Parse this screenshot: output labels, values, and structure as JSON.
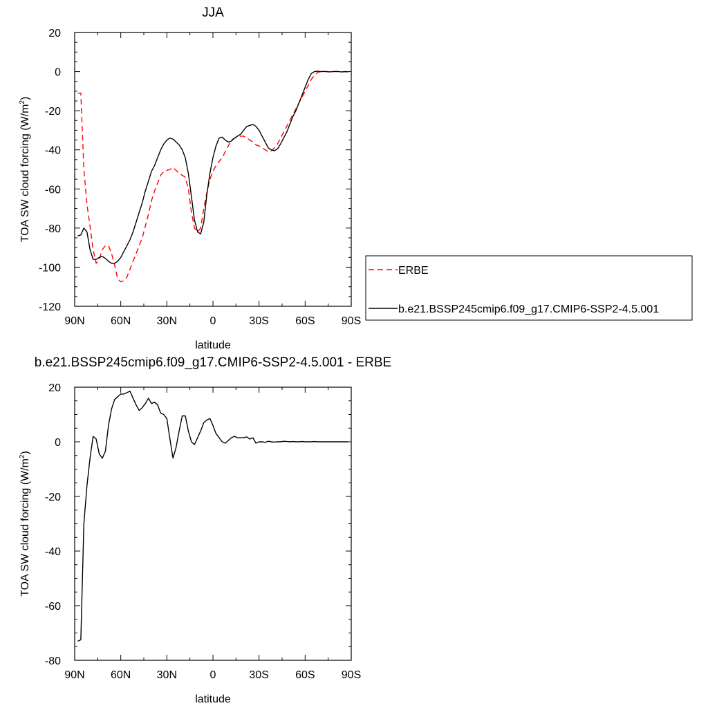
{
  "chart_data": [
    {
      "type": "line",
      "title": "JJA",
      "xlabel": "latitude",
      "ylabel": "TOA SW cloud forcing (W/m",
      "ylabel_sup": "2",
      "ylabel_end": ")",
      "xlim": [
        90,
        -90
      ],
      "ylim": [
        -120,
        20
      ],
      "xticks": [
        {
          "value": 90,
          "label": "90N"
        },
        {
          "value": 60,
          "label": "60N"
        },
        {
          "value": 30,
          "label": "30N"
        },
        {
          "value": 0,
          "label": "0"
        },
        {
          "value": -30,
          "label": "30S"
        },
        {
          "value": -60,
          "label": "60S"
        },
        {
          "value": -90,
          "label": "90S"
        }
      ],
      "yticks": [
        20,
        0,
        -20,
        -40,
        -60,
        -80,
        -100,
        -120
      ],
      "legend_position": "right",
      "series": [
        {
          "name": "ERBE",
          "color": "#ff0000",
          "style": "dashed",
          "x": [
            88,
            86,
            84,
            82,
            80,
            78,
            76,
            74,
            72,
            70,
            68,
            66,
            64,
            62,
            60,
            58,
            56,
            54,
            52,
            50,
            48,
            46,
            44,
            42,
            40,
            38,
            36,
            34,
            32,
            30,
            28,
            26,
            24,
            22,
            20,
            18,
            16,
            14,
            12,
            10,
            8,
            6,
            4,
            2,
            0,
            -2,
            -4,
            -6,
            -8,
            -10,
            -12,
            -14,
            -16,
            -18,
            -20,
            -22,
            -24,
            -26,
            -28,
            -30,
            -32,
            -34,
            -36,
            -38,
            -40,
            -42,
            -44,
            -46,
            -48,
            -50,
            -52,
            -54,
            -56,
            -58,
            -60,
            -62,
            -64,
            -66,
            -68,
            -70,
            -72,
            -74,
            -76,
            -78,
            -80,
            -82,
            -84,
            -86,
            -88
          ],
          "y": [
            -11,
            -11,
            -50,
            -68,
            -79,
            -91,
            -98,
            -96,
            -91,
            -89,
            -89,
            -93,
            -99,
            -106,
            -107.5,
            -107,
            -105,
            -101,
            -97,
            -93,
            -89,
            -85,
            -79,
            -73,
            -66,
            -61,
            -57,
            -53,
            -51,
            -50.5,
            -50,
            -49,
            -50.5,
            -52,
            -53,
            -54,
            -60,
            -72,
            -80,
            -82,
            -80,
            -70,
            -62,
            -55,
            -51,
            -48,
            -46,
            -44,
            -41,
            -38,
            -35,
            -34,
            -33.5,
            -33,
            -33,
            -34,
            -35,
            -36,
            -37.5,
            -38,
            -39,
            -40,
            -41,
            -40.5,
            -39,
            -37,
            -34,
            -31,
            -28,
            -25,
            -22,
            -19,
            -16,
            -13,
            -10,
            -7,
            -4,
            -2,
            -0.5,
            0,
            0.2,
            0,
            -0.2,
            0,
            0.1,
            0,
            -0.1,
            0,
            0
          ]
        },
        {
          "name": "b.e21.BSSP245cmip6.f09_g17.CMIP6-SSP2-4.5.001",
          "color": "#000000",
          "style": "solid",
          "x": [
            88,
            86,
            84,
            82,
            80,
            78,
            76,
            74,
            72,
            70,
            68,
            66,
            64,
            62,
            60,
            58,
            56,
            54,
            52,
            50,
            48,
            46,
            44,
            42,
            40,
            38,
            36,
            34,
            32,
            30,
            28,
            26,
            24,
            22,
            20,
            18,
            16,
            14,
            12,
            10,
            8,
            6,
            4,
            2,
            0,
            -2,
            -4,
            -6,
            -8,
            -10,
            -12,
            -14,
            -16,
            -18,
            -20,
            -22,
            -24,
            -26,
            -28,
            -30,
            -32,
            -34,
            -36,
            -38,
            -40,
            -42,
            -44,
            -46,
            -48,
            -50,
            -52,
            -54,
            -56,
            -58,
            -60,
            -62,
            -64,
            -66,
            -68,
            -70,
            -72,
            -74,
            -76,
            -78,
            -80,
            -82,
            -84,
            -86,
            -88
          ],
          "y": [
            -84,
            -83.5,
            -80,
            -82,
            -91,
            -96,
            -96,
            -95,
            -94.5,
            -95.5,
            -97,
            -98,
            -98,
            -97,
            -95,
            -92,
            -89,
            -86,
            -82,
            -77,
            -72,
            -67,
            -61,
            -56,
            -51,
            -48,
            -44,
            -40,
            -37,
            -35,
            -34,
            -34.5,
            -36,
            -37.5,
            -40,
            -44,
            -52,
            -64,
            -76,
            -82,
            -83,
            -77,
            -63,
            -52,
            -44,
            -38,
            -34,
            -33.5,
            -35,
            -36,
            -35.5,
            -34,
            -33,
            -32,
            -30,
            -28,
            -27.5,
            -27,
            -28,
            -30,
            -33,
            -36,
            -39,
            -40,
            -40.5,
            -39.5,
            -37,
            -34,
            -31,
            -27,
            -23,
            -20,
            -16,
            -12,
            -8,
            -4,
            -1,
            0,
            0.2,
            0,
            0.1,
            0,
            -0.1,
            0,
            0.1,
            0,
            -0.2,
            0,
            -0.2
          ]
        }
      ]
    },
    {
      "type": "line",
      "title": "b.e21.BSSP245cmip6.f09_g17.CMIP6-SSP2-4.5.001 - ERBE",
      "xlabel": "latitude",
      "ylabel": "TOA SW cloud forcing (W/m",
      "ylabel_sup": "2",
      "ylabel_end": ")",
      "xlim": [
        90,
        -90
      ],
      "ylim": [
        -80,
        20
      ],
      "xticks": [
        {
          "value": 90,
          "label": "90N"
        },
        {
          "value": 60,
          "label": "60N"
        },
        {
          "value": 30,
          "label": "30N"
        },
        {
          "value": 0,
          "label": "0"
        },
        {
          "value": -30,
          "label": "30S"
        },
        {
          "value": -60,
          "label": "60S"
        },
        {
          "value": -90,
          "label": "90S"
        }
      ],
      "yticks": [
        20,
        0,
        -20,
        -40,
        -60,
        -80
      ],
      "series": [
        {
          "color": "#000000",
          "style": "solid",
          "x": [
            88,
            86,
            84,
            82,
            80,
            78,
            76,
            74,
            72,
            70,
            68,
            66,
            64,
            62,
            60,
            58,
            56,
            54,
            52,
            50,
            48,
            46,
            44,
            42,
            40,
            38,
            36,
            34,
            32,
            30,
            28,
            26,
            24,
            22,
            20,
            18,
            16,
            14,
            12,
            10,
            8,
            6,
            4,
            2,
            0,
            -2,
            -4,
            -6,
            -8,
            -10,
            -12,
            -14,
            -16,
            -18,
            -20,
            -22,
            -24,
            -26,
            -28,
            -30,
            -32,
            -34,
            -36,
            -38,
            -40,
            -42,
            -44,
            -46,
            -48,
            -50,
            -52,
            -54,
            -56,
            -58,
            -60,
            -62,
            -64,
            -66,
            -68,
            -70,
            -72,
            -74,
            -76,
            -78,
            -80,
            -82,
            -84,
            -86,
            -88
          ],
          "y": [
            -73,
            -72.5,
            -30,
            -16,
            -6,
            2,
            1,
            -4.5,
            -6,
            -3.5,
            6,
            12,
            15.5,
            16.5,
            17.5,
            17.5,
            18,
            18.5,
            16,
            13.5,
            11.5,
            12.5,
            14,
            16,
            14,
            14.5,
            13.5,
            10.5,
            10,
            8.5,
            1,
            -6,
            -2,
            4,
            9.5,
            9.5,
            4,
            0,
            -1,
            1.5,
            4,
            7,
            8,
            8.5,
            6,
            3,
            1.5,
            0,
            -0.5,
            0.5,
            1.5,
            2,
            1.5,
            1.5,
            1.5,
            1.8,
            1,
            1.5,
            -0.5,
            0,
            0,
            -0.2,
            0.2,
            0,
            -0.1,
            0,
            0,
            0.2,
            0.1,
            0,
            0.1,
            0,
            0,
            0.1,
            0,
            0,
            0,
            0.1,
            0,
            0,
            0,
            0,
            0,
            0,
            0,
            0,
            0,
            0,
            0
          ]
        }
      ]
    }
  ]
}
